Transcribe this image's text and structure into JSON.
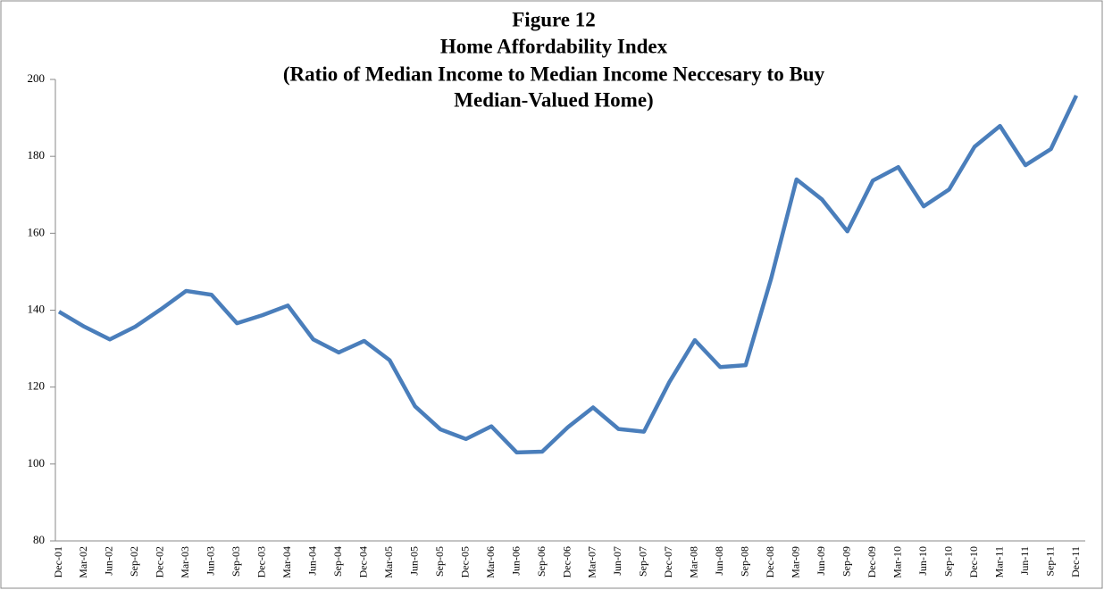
{
  "chart_data": {
    "type": "line",
    "title": [
      "Figure 12",
      "Home Affordability Index",
      "(Ratio of Median Income to Median Income Neccesary to Buy",
      "Median-Valued Home)"
    ],
    "categories": [
      "Dec-01",
      "Mar-02",
      "Jun-02",
      "Sep-02",
      "Dec-02",
      "Mar-03",
      "Jun-03",
      "Sep-03",
      "Dec-03",
      "Mar-04",
      "Jun-04",
      "Sep-04",
      "Dec-04",
      "Mar-05",
      "Jun-05",
      "Sep-05",
      "Dec-05",
      "Mar-06",
      "Jun-06",
      "Sep-06",
      "Dec-06",
      "Mar-07",
      "Jun-07",
      "Sep-07",
      "Dec-07",
      "Mar-08",
      "Jun-08",
      "Sep-08",
      "Dec-08",
      "Mar-09",
      "Jun-09",
      "Sep-09",
      "Dec-09",
      "Mar-10",
      "Jun-10",
      "Sep-10",
      "Dec-10",
      "Mar-11",
      "Jun-11",
      "Sep-11",
      "Dec-11"
    ],
    "values": [
      139.6,
      135.7,
      132.4,
      135.7,
      140.2,
      145,
      144,
      136.6,
      138.7,
      141.2,
      132.4,
      129,
      132,
      127,
      115,
      109,
      106.5,
      109.8,
      103,
      103.2,
      109.5,
      114.7,
      109.1,
      108.4,
      121.3,
      132.2,
      125.2,
      125.7,
      148.2,
      174,
      168.8,
      160.5,
      173.7,
      177.2,
      167,
      171.4,
      182.5,
      187.9,
      177.7,
      181.9,
      195.8
    ],
    "color": "#4a7ebb",
    "ylim": [
      80,
      200
    ],
    "yticks": [
      80,
      100,
      120,
      140,
      160,
      180,
      200
    ],
    "grid": false
  }
}
